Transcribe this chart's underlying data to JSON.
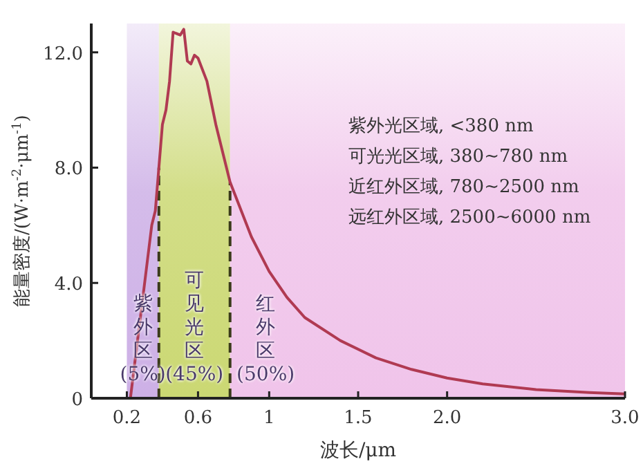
{
  "chart_data": {
    "type": "line",
    "xlabel": "波长/μm",
    "ylabel": "能量密度/(W·m$^{-2}$·μm$^{-1}$)",
    "xlim": [
      0,
      3.0
    ],
    "ylim": [
      0,
      13
    ],
    "xticks": [
      0.2,
      0.6,
      {
        "value": 1,
        "label": "1"
      },
      1.5,
      {
        "value": 2,
        "label": "2.0"
      },
      {
        "value": 3,
        "label": "3.0"
      }
    ],
    "yticks": [
      {
        "value": 0,
        "label": "0"
      },
      {
        "value": 4,
        "label": "4.0"
      },
      {
        "value": 8,
        "label": "8.0"
      },
      {
        "value": 12,
        "label": "12.0"
      }
    ],
    "series": [
      {
        "color": "#b03a52",
        "x": [
          0.22,
          0.26,
          0.3,
          0.34,
          0.36,
          0.38,
          0.4,
          0.42,
          0.44,
          0.46,
          0.5,
          0.52,
          0.54,
          0.56,
          0.58,
          0.6,
          0.65,
          0.7,
          0.78,
          0.9,
          1.0,
          1.1,
          1.2,
          1.4,
          1.6,
          1.8,
          2.0,
          2.2,
          2.5,
          2.8,
          3.0
        ],
        "values": [
          0,
          2,
          4,
          6,
          6.5,
          8,
          9.5,
          10,
          11,
          12.7,
          12.6,
          12.8,
          11.7,
          11.6,
          11.9,
          11.8,
          11,
          9.5,
          7.5,
          5.6,
          4.4,
          3.5,
          2.8,
          2.0,
          1.4,
          1.0,
          0.7,
          0.5,
          0.3,
          0.2,
          0.15
        ]
      }
    ],
    "bands": [
      {
        "axis": "x",
        "from": 0.2,
        "to": 0.38,
        "label": "紫外区(5%)",
        "color": "#cdb0e6"
      },
      {
        "axis": "x",
        "from": 0.38,
        "to": 0.78,
        "label": "可见光区(45%)",
        "color": "#cbd873"
      },
      {
        "axis": "x",
        "from": 0.78,
        "to": 3.0,
        "label": "红外区(50%)",
        "color": "#f0c4ea"
      }
    ],
    "ref_lines": [
      {
        "axis": "x",
        "value": 0.38,
        "line_style": "dashed",
        "color": "#3a3a1a"
      },
      {
        "axis": "x",
        "value": 0.78,
        "line_style": "dashed",
        "color": "#3a3a1a"
      }
    ],
    "annotations": [
      "紫外光区域, <380 nm",
      "可光光区域, 380~780 nm",
      "近红外区域, 780~2500 nm",
      "远红外区域, 2500~6000 nm"
    ],
    "grid": false,
    "marker": "none",
    "line_style": "solid"
  }
}
